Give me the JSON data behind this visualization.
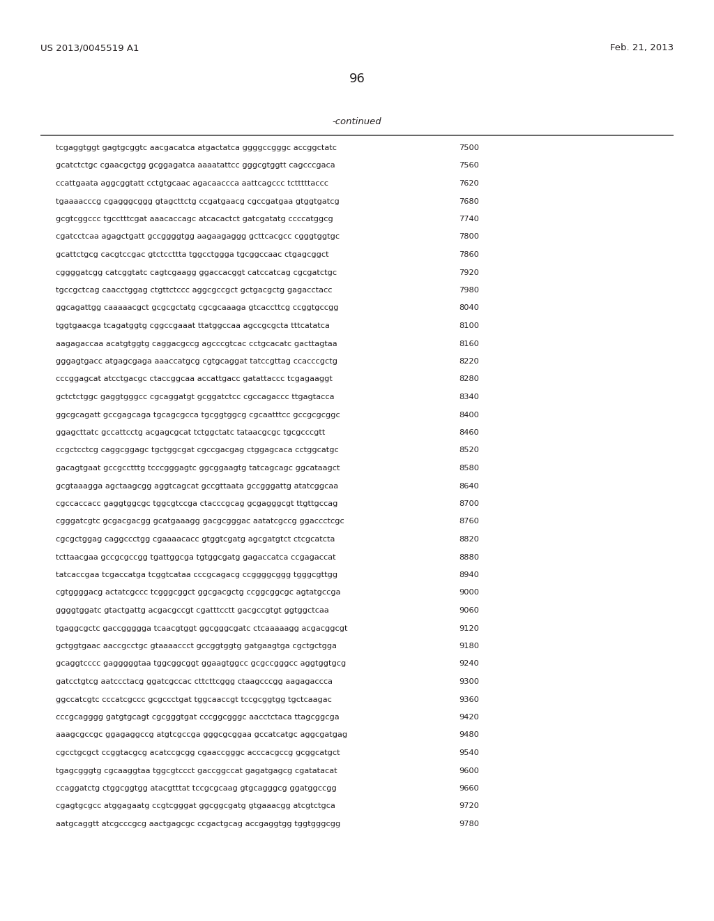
{
  "header_left": "US 2013/0045519 A1",
  "header_right": "Feb. 21, 2013",
  "page_number": "96",
  "continued_label": "-continued",
  "background_color": "#ffffff",
  "text_color": "#231f20",
  "sequence_lines": [
    [
      "tcgaggtggt gagtgcggtc aacgacatca atgactatca ggggccgggc accggctatc",
      "7500"
    ],
    [
      "gcatctctgc cgaacgctgg gcggagatca aaaatattcc gggcgtggtt cagcccgaca",
      "7560"
    ],
    [
      "ccattgaata aggcggtatt cctgtgcaac agacaaccca aattcagccc tctttttaccc",
      "7620"
    ],
    [
      "tgaaaacccg cgagggcggg gtagcttctg ccgatgaacg cgccgatgaa gtggtgatcg",
      "7680"
    ],
    [
      "gcgtcggccc tgcctttcgat aaacaccagc atcacactct gatcgatatg ccccatggcg",
      "7740"
    ],
    [
      "cgatcctcaa agagctgatt gccggggtgg aagaagaggg gcttcacgcc cgggtggtgc",
      "7800"
    ],
    [
      "gcattctgcg cacgtccgac gtctccttta tggcctggga tgcggccaac ctgagcggct",
      "7860"
    ],
    [
      "cggggatcgg catcggtatc cagtcgaagg ggaccacggt catccatcag cgcgatctgc",
      "7920"
    ],
    [
      "tgccgctcag caacctggag ctgttctccc aggcgccgct gctgacgctg gagacctacc",
      "7980"
    ],
    [
      "ggcagattgg caaaaacgct gcgcgctatg cgcgcaaaga gtcaccttcg ccggtgccgg",
      "8040"
    ],
    [
      "tggtgaacga tcagatggtg cggccgaaat ttatggccaa agccgcgcta tttcatatca",
      "8100"
    ],
    [
      "aagagaccaa acatgtggtg caggacgccg agcccgtcac cctgcacatc gacttagtaa",
      "8160"
    ],
    [
      "gggagtgacc atgagcgaga aaaccatgcg cgtgcaggat tatccgttag ccacccgctg",
      "8220"
    ],
    [
      "cccggagcat atcctgacgc ctaccggcaa accattgacc gatattaccc tcgagaaggt",
      "8280"
    ],
    [
      "gctctctggc gaggtgggcc cgcaggatgt gcggatctcc cgccagaccc ttgagtacca",
      "8340"
    ],
    [
      "ggcgcagatt gccgagcaga tgcagcgcca tgcggtggcg cgcaatttcc gccgcgcggc",
      "8400"
    ],
    [
      "ggagcttatc gccattcctg acgagcgcat tctggctatc tataacgcgc tgcgcccgtt",
      "8460"
    ],
    [
      "ccgctcctcg caggcggagc tgctggcgat cgccgacgag ctggagcaca cctggcatgc",
      "8520"
    ],
    [
      "gacagtgaat gccgcctttg tcccgggagtc ggcggaagtg tatcagcagc ggcataagct",
      "8580"
    ],
    [
      "gcgtaaagga agctaagcgg aggtcagcat gccgttaata gccgggattg atatcggcaa",
      "8640"
    ],
    [
      "cgccaccacc gaggtggcgc tggcgtccga ctacccgcag gcgagggcgt ttgttgccag",
      "8700"
    ],
    [
      "cgggatcgtc gcgacgacgg gcatgaaagg gacgcgggac aatatcgccg ggaccctcgc",
      "8760"
    ],
    [
      "cgcgctggag caggccctgg cgaaaacacc gtggtcgatg agcgatgtct ctcgcatcta",
      "8820"
    ],
    [
      "tcttaacgaa gccgcgccgg tgattggcga tgtggcgatg gagaccatca ccgagaccat",
      "8880"
    ],
    [
      "tatcaccgaa tcgaccatga tcggtcataa cccgcagacg ccggggcggg tgggcgttgg",
      "8940"
    ],
    [
      "cgtggggacg actatcgccc tcgggcggct ggcgacgctg ccggcggcgc agtatgccga",
      "9000"
    ],
    [
      "ggggtggatc gtactgattg acgacgccgt cgatttcctt gacgccgtgt ggtggctcaa",
      "9060"
    ],
    [
      "tgaggcgctc gaccggggga tcaacgtggt ggcgggcgatc ctcaaaaagg acgacggcgt",
      "9120"
    ],
    [
      "gctggtgaac aaccgcctgc gtaaaaccct gccggtggtg gatgaagtga cgctgctgga",
      "9180"
    ],
    [
      "gcaggtcccc gagggggtaa tggcggcggt ggaagtggcc gcgccgggcc aggtggtgcg",
      "9240"
    ],
    [
      "gatcctgtcg aatccctacg ggatcgccac cttcttcggg ctaagcccgg aagagaccca",
      "9300"
    ],
    [
      "ggccatcgtc cccatcgccc gcgccctgat tggcaaccgt tccgcggtgg tgctcaagac",
      "9360"
    ],
    [
      "cccgcagggg gatgtgcagt cgcgggtgat cccggcgggc aacctctaca ttagcggcga",
      "9420"
    ],
    [
      "aaagcgccgc ggagaggccg atgtcgccga gggcgcggaa gccatcatgc aggcgatgag",
      "9480"
    ],
    [
      "cgcctgcgct ccggtacgcg acatccgcgg cgaaccgggc acccacgccg gcggcatgct",
      "9540"
    ],
    [
      "tgagcgggtg cgcaaggtaa tggcgtccct gaccggccat gagatgagcg cgatatacat",
      "9600"
    ],
    [
      "ccaggatctg ctggcggtgg atacgtttat tccgcgcaag gtgcagggcg ggatggccgg",
      "9660"
    ],
    [
      "cgagtgcgcc atggagaatg ccgtcgggat ggcggcgatg gtgaaacgg atcgtctgca",
      "9720"
    ],
    [
      "aatgcaggtt atcgcccgcg aactgagcgc ccgactgcag accgaggtgg tggtgggcgg",
      "9780"
    ]
  ]
}
